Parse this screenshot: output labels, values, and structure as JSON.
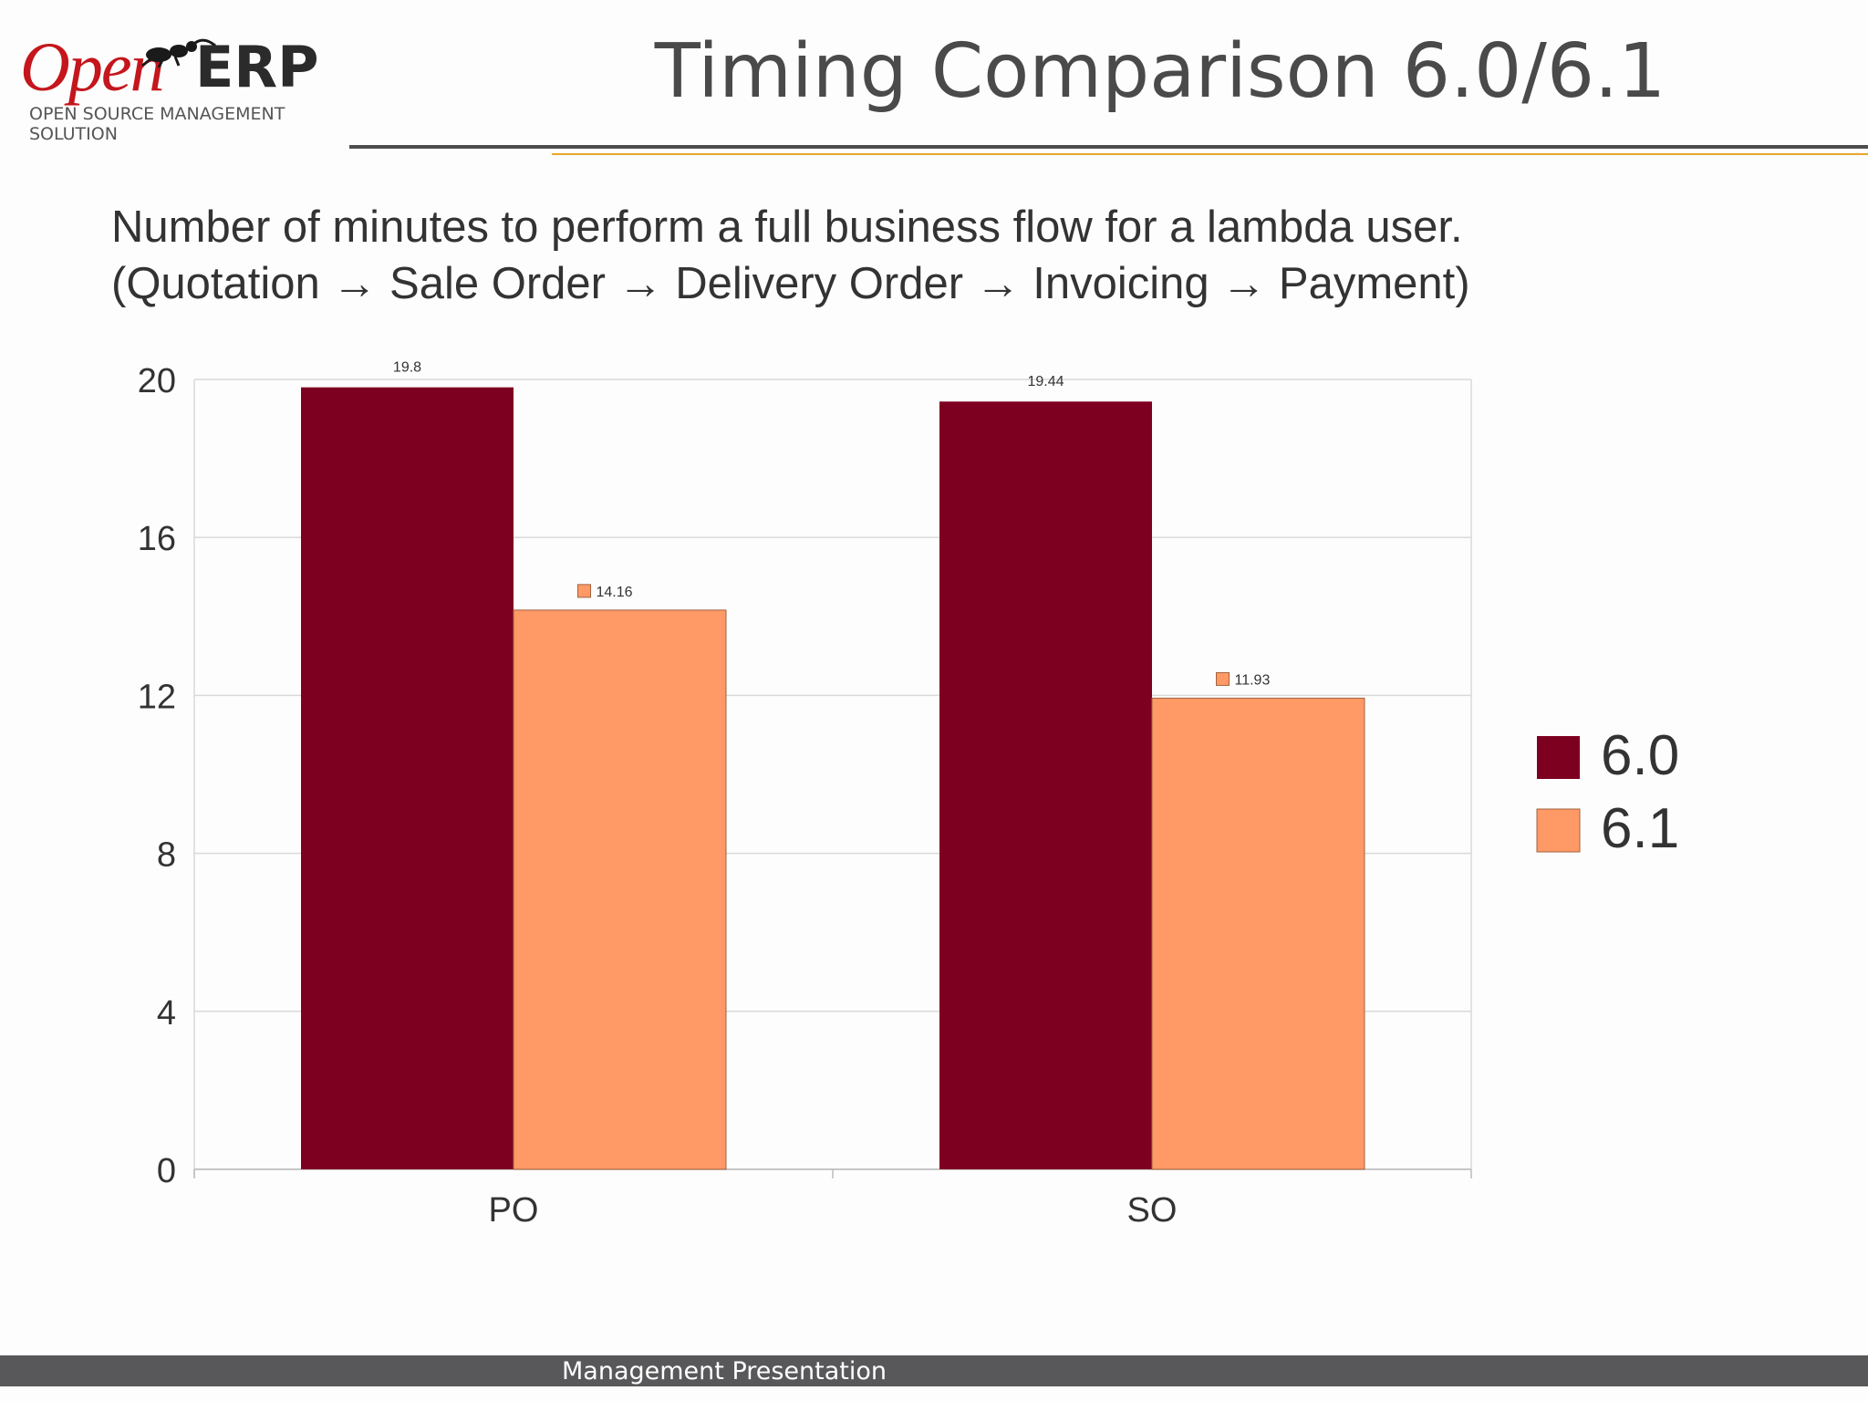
{
  "logo": {
    "brand_open": "Open",
    "brand_erp": "ERP",
    "tagline": "OPEN SOURCE MANAGEMENT SOLUTION"
  },
  "slide": {
    "title": "Timing Comparison 6.0/6.1",
    "subtitle_line1": "Number of minutes to perform a full business flow for a lambda user.",
    "subtitle_line2": "(Quotation → Sale Order → Delivery Order → Invoicing → Payment)"
  },
  "footer": {
    "text": "Management Presentation"
  },
  "colors": {
    "series_6_0": "#7e0021",
    "series_6_1": "#ff9966",
    "title": "#4a4a4a",
    "footer_bg": "#58585a",
    "accent_rule": "#e8a72a"
  },
  "chart_data": {
    "type": "bar",
    "categories": [
      "PO",
      "SO"
    ],
    "series": [
      {
        "name": "6.0",
        "values": [
          19.8,
          19.44
        ],
        "labels": [
          "19.8",
          "19.44"
        ],
        "color": "#7e0021"
      },
      {
        "name": "6.1",
        "values": [
          14.16,
          11.93
        ],
        "labels": [
          "14.16",
          "11.93"
        ],
        "color": "#ff9966"
      }
    ],
    "yticks": [
      "0",
      "4",
      "8",
      "12",
      "16",
      "20"
    ],
    "ylim": [
      0,
      20
    ],
    "grid": true,
    "legend": "right"
  }
}
